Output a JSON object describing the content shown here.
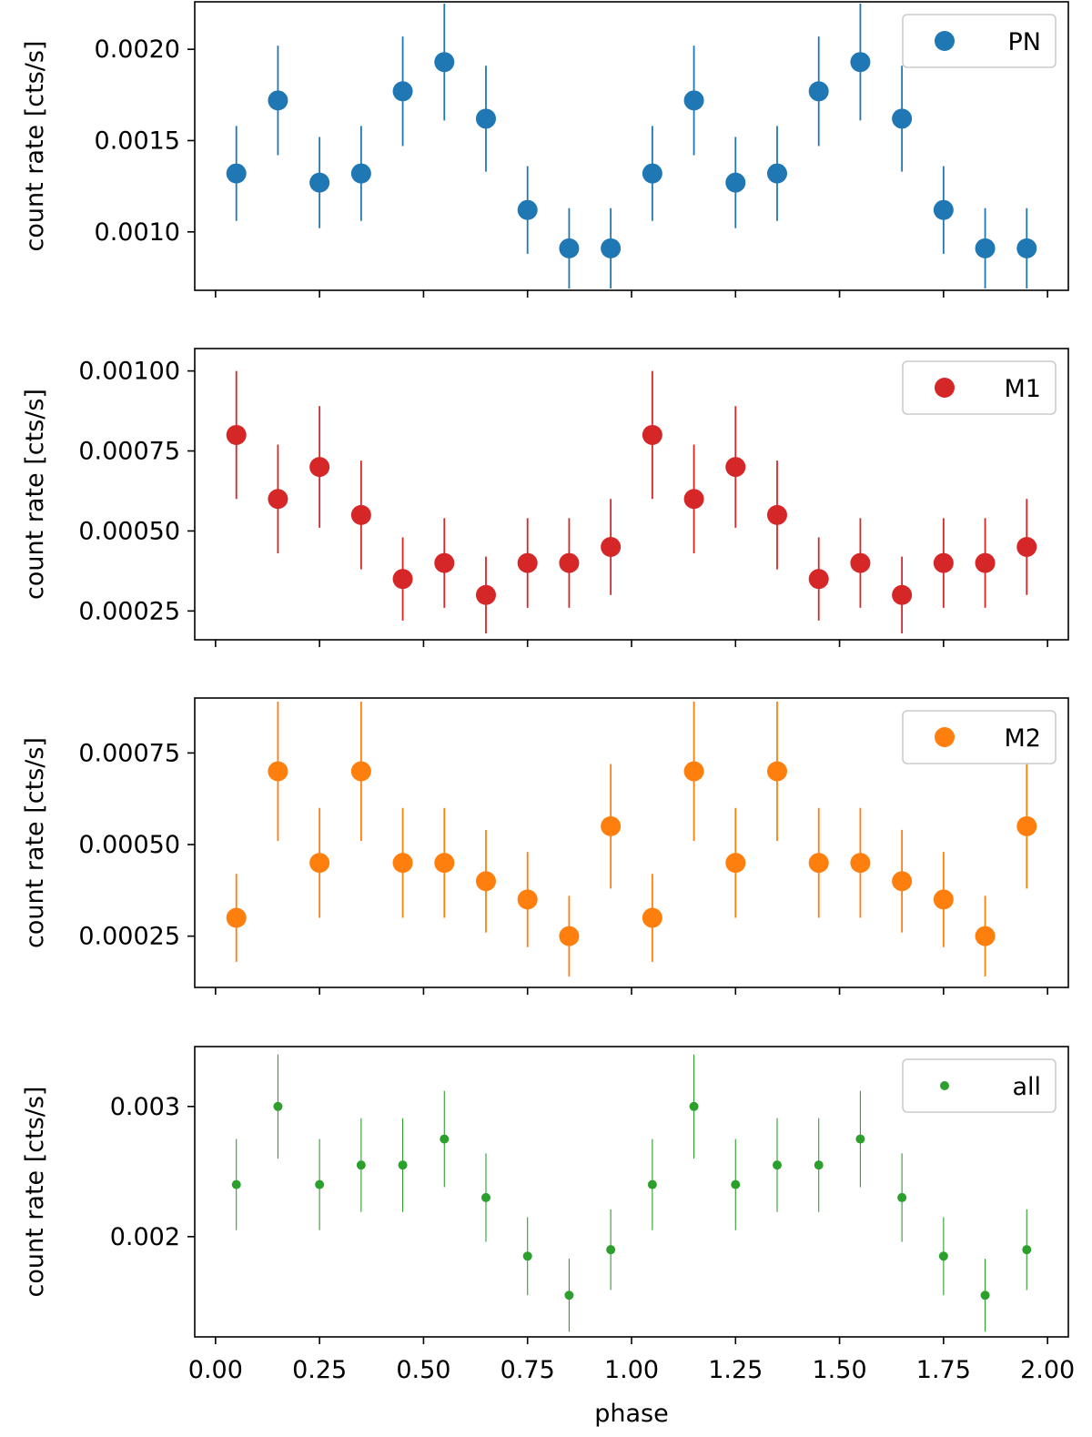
{
  "chart_data": [
    {
      "type": "scatter",
      "errorbars": true,
      "legend": "PN",
      "legend_position": "top-right",
      "color": "#1f77b4",
      "marker_size": "large",
      "xlabel": "",
      "ylabel": "count rate [cts/s]",
      "xlim": [
        -0.05,
        2.05
      ],
      "ylim": [
        0.00068,
        0.00226
      ],
      "yticks": [
        0.001,
        0.0015,
        0.002
      ],
      "yticklabels": [
        "0.0010",
        "0.0015",
        "0.0020"
      ],
      "x": [
        0.05,
        0.15,
        0.25,
        0.35,
        0.45,
        0.55,
        0.65,
        0.75,
        0.85,
        0.95,
        1.05,
        1.15,
        1.25,
        1.35,
        1.45,
        1.55,
        1.65,
        1.75,
        1.85,
        1.95
      ],
      "y": [
        0.00132,
        0.00172,
        0.00127,
        0.00132,
        0.00177,
        0.00193,
        0.00162,
        0.00112,
        0.00091,
        0.00091,
        0.00132,
        0.00172,
        0.00127,
        0.00132,
        0.00177,
        0.00193,
        0.00162,
        0.00112,
        0.00091,
        0.00091
      ],
      "yerr": [
        0.00026,
        0.0003,
        0.00025,
        0.00026,
        0.0003,
        0.00032,
        0.00029,
        0.00024,
        0.00022,
        0.00022,
        0.00026,
        0.0003,
        0.00025,
        0.00026,
        0.0003,
        0.00032,
        0.00029,
        0.00024,
        0.00022,
        0.00022
      ]
    },
    {
      "type": "scatter",
      "errorbars": true,
      "legend": "M1",
      "legend_position": "top-right",
      "color": "#d62728",
      "marker_size": "large",
      "xlabel": "",
      "ylabel": "count rate [cts/s]",
      "xlim": [
        -0.05,
        2.05
      ],
      "ylim": [
        0.00016,
        0.00107
      ],
      "yticks": [
        0.00025,
        0.0005,
        0.00075,
        0.001
      ],
      "yticklabels": [
        "0.00025",
        "0.00050",
        "0.00075",
        "0.00100"
      ],
      "x": [
        0.05,
        0.15,
        0.25,
        0.35,
        0.45,
        0.55,
        0.65,
        0.75,
        0.85,
        0.95,
        1.05,
        1.15,
        1.25,
        1.35,
        1.45,
        1.55,
        1.65,
        1.75,
        1.85,
        1.95
      ],
      "y": [
        0.0008,
        0.0006,
        0.0007,
        0.00055,
        0.00035,
        0.0004,
        0.0003,
        0.0004,
        0.0004,
        0.00045,
        0.0008,
        0.0006,
        0.0007,
        0.00055,
        0.00035,
        0.0004,
        0.0003,
        0.0004,
        0.0004,
        0.00045
      ],
      "yerr": [
        0.0002,
        0.00017,
        0.00019,
        0.00017,
        0.00013,
        0.00014,
        0.00012,
        0.00014,
        0.00014,
        0.00015,
        0.0002,
        0.00017,
        0.00019,
        0.00017,
        0.00013,
        0.00014,
        0.00012,
        0.00014,
        0.00014,
        0.00015
      ]
    },
    {
      "type": "scatter",
      "errorbars": true,
      "legend": "M2",
      "legend_position": "top-right",
      "color": "#ff7f0e",
      "marker_size": "large",
      "xlabel": "",
      "ylabel": "count rate [cts/s]",
      "xlim": [
        -0.05,
        2.05
      ],
      "ylim": [
        0.00011,
        0.0009
      ],
      "yticks": [
        0.00025,
        0.0005,
        0.00075
      ],
      "yticklabels": [
        "0.00025",
        "0.00050",
        "0.00075"
      ],
      "x": [
        0.05,
        0.15,
        0.25,
        0.35,
        0.45,
        0.55,
        0.65,
        0.75,
        0.85,
        0.95,
        1.05,
        1.15,
        1.25,
        1.35,
        1.45,
        1.55,
        1.65,
        1.75,
        1.85,
        1.95
      ],
      "y": [
        0.0003,
        0.0007,
        0.00045,
        0.0007,
        0.00045,
        0.00045,
        0.0004,
        0.00035,
        0.00025,
        0.00055,
        0.0003,
        0.0007,
        0.00045,
        0.0007,
        0.00045,
        0.00045,
        0.0004,
        0.00035,
        0.00025,
        0.00055
      ],
      "yerr": [
        0.00012,
        0.00019,
        0.00015,
        0.00019,
        0.00015,
        0.00015,
        0.00014,
        0.00013,
        0.00011,
        0.00017,
        0.00012,
        0.00019,
        0.00015,
        0.00019,
        0.00015,
        0.00015,
        0.00014,
        0.00013,
        0.00011,
        0.00017
      ]
    },
    {
      "type": "scatter",
      "errorbars": true,
      "legend": "all",
      "legend_position": "top-right",
      "color": "#2ca02c",
      "marker_size": "small",
      "xlabel": "phase",
      "ylabel": "count rate [cts/s]",
      "xlim": [
        -0.05,
        2.05
      ],
      "ylim": [
        0.00123,
        0.00346
      ],
      "yticks": [
        0.002,
        0.003
      ],
      "yticklabels": [
        "0.002",
        "0.003"
      ],
      "xticks": [
        0.0,
        0.25,
        0.5,
        0.75,
        1.0,
        1.25,
        1.5,
        1.75,
        2.0
      ],
      "xticklabels": [
        "0.00",
        "0.25",
        "0.50",
        "0.75",
        "1.00",
        "1.25",
        "1.50",
        "1.75",
        "2.00"
      ],
      "x": [
        0.05,
        0.15,
        0.25,
        0.35,
        0.45,
        0.55,
        0.65,
        0.75,
        0.85,
        0.95,
        1.05,
        1.15,
        1.25,
        1.35,
        1.45,
        1.55,
        1.65,
        1.75,
        1.85,
        1.95
      ],
      "y": [
        0.0024,
        0.003,
        0.0024,
        0.00255,
        0.00255,
        0.00275,
        0.0023,
        0.00185,
        0.00155,
        0.0019,
        0.0024,
        0.003,
        0.0024,
        0.00255,
        0.00255,
        0.00275,
        0.0023,
        0.00185,
        0.00155,
        0.0019
      ],
      "yerr": [
        0.00035,
        0.0004,
        0.00035,
        0.00036,
        0.00036,
        0.00037,
        0.00034,
        0.0003,
        0.00028,
        0.00031,
        0.00035,
        0.0004,
        0.00035,
        0.00036,
        0.00036,
        0.00037,
        0.00034,
        0.0003,
        0.00028,
        0.00031
      ]
    }
  ]
}
